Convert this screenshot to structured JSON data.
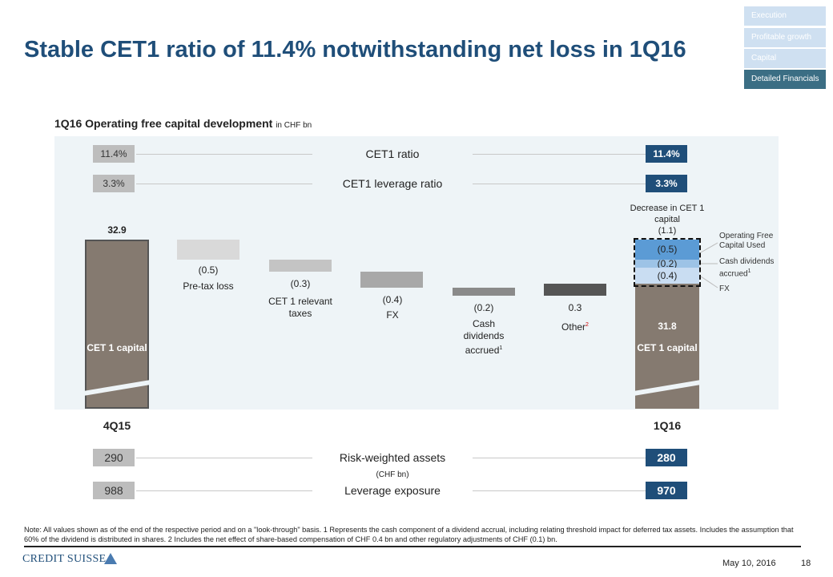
{
  "title": "Stable CET1 ratio of 11.4% notwithstanding net loss in 1Q16",
  "nav": [
    {
      "label": "Execution"
    },
    {
      "label": "Profitable growth"
    },
    {
      "label": "Capital"
    },
    {
      "label": "Detailed Financials"
    }
  ],
  "subtitle": "1Q16 Operating free capital development",
  "subtitle_unit": "in CHF bn",
  "ratios": {
    "cet1_label": "CET1 ratio",
    "cet1_4q15": "11.4%",
    "cet1_1q16": "11.4%",
    "lev_label": "CET1 leverage ratio",
    "lev_4q15": "3.3%",
    "lev_1q16": "3.3%"
  },
  "chart_data": {
    "type": "waterfall",
    "title": "1Q16 Operating free capital development",
    "unit": "CHF bn",
    "start": {
      "label": "CET 1 capital",
      "period": "4Q15",
      "value": 32.9,
      "value_label": "32.9"
    },
    "steps": [
      {
        "label": "Pre-tax loss",
        "value": -0.5,
        "value_label": "(0.5)",
        "color": "#d9d9d9"
      },
      {
        "label": "CET 1 relevant taxes",
        "value": -0.3,
        "value_label": "(0.3)",
        "color": "#c4c4c4"
      },
      {
        "label": "FX",
        "value": -0.4,
        "value_label": "(0.4)",
        "color": "#a8a8a8"
      },
      {
        "label": "Cash dividends accrued",
        "footnote": "1",
        "value": -0.2,
        "value_label": "(0.2)",
        "color": "#8a8a8a"
      },
      {
        "label": "Other",
        "footnote": "2",
        "value": 0.3,
        "value_label": "0.3",
        "color": "#555555"
      }
    ],
    "end": {
      "label": "CET 1 capital",
      "period": "1Q16",
      "value": 31.8,
      "value_label": "31.8"
    },
    "decrease": {
      "label": "Decrease in CET 1 capital",
      "value_label": "(1.1)",
      "components": [
        {
          "label": "Operating Free Capital Used",
          "value": 0.5,
          "value_label": "(0.5)",
          "color": "#5b9bd5"
        },
        {
          "label": "Cash dividends accrued",
          "footnote": "1",
          "value": 0.2,
          "value_label": "(0.2)",
          "color": "#9dc3e6"
        },
        {
          "label": "FX",
          "value": 0.4,
          "value_label": "(0.4)",
          "color": "#c9ddf2"
        }
      ]
    },
    "bar_color": "#857a70"
  },
  "bottom": {
    "rwa_label": "Risk-weighted assets",
    "rwa_unit": "(CHF bn)",
    "rwa_4q15": "290",
    "rwa_1q16": "280",
    "lev_label": "Leverage exposure",
    "lev_4q15": "988",
    "lev_1q16": "970"
  },
  "note": "Note: All values shown as of the end of the respective period and on a \"look-through\" basis.     1 Represents the cash component of a dividend accrual, including relating threshold impact for deferred tax assets. Includes the assumption that 60% of the dividend is distributed in shares.     2 Includes the net effect of share-based compensation of CHF 0.4 bn and other regulatory adjustments of CHF (0.1) bn.",
  "footer": {
    "logo": "CREDIT SUISSE",
    "date": "May 10, 2016",
    "page": "18"
  }
}
